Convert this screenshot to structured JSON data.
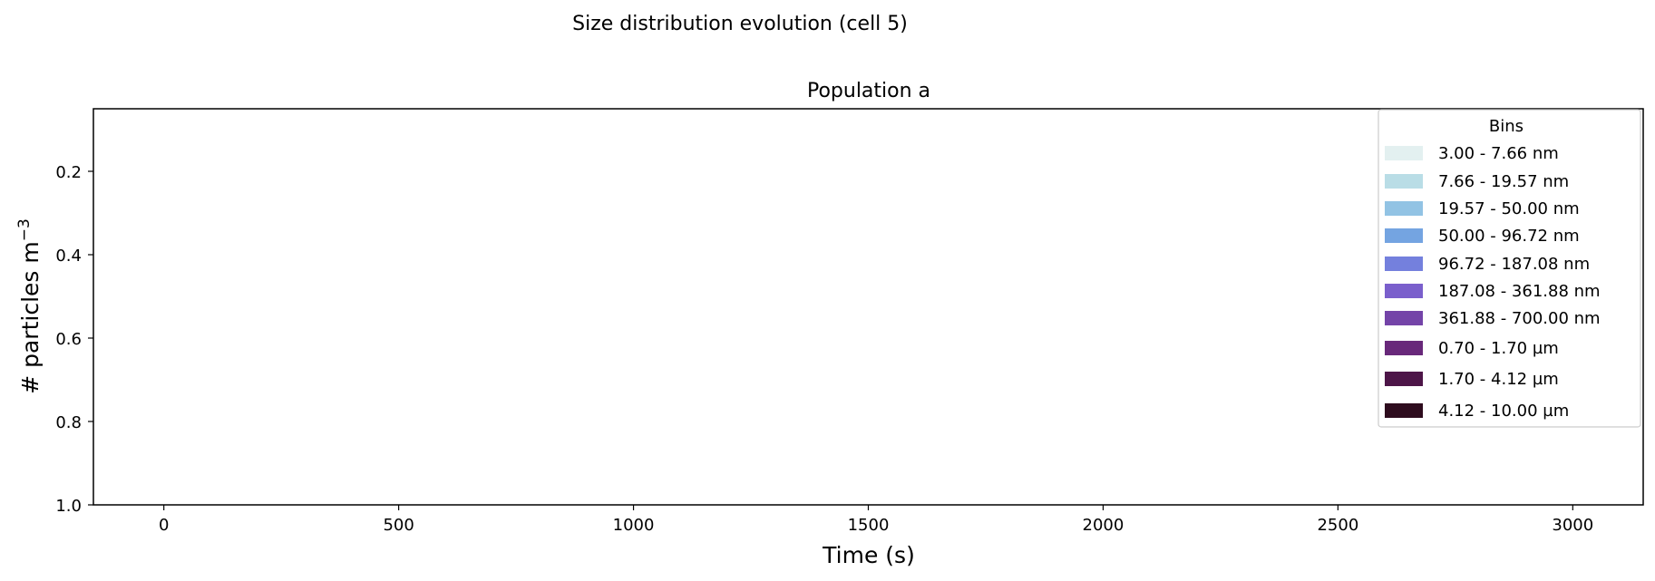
{
  "suptitle": "Size distribution evolution (cell 5)",
  "chart_data": {
    "type": "area",
    "title": "Population a",
    "xlabel": "Time (s)",
    "ylabel_main": "# particles m",
    "ylabel_sup": "−3",
    "xlim": [
      -150,
      3150
    ],
    "ylim": [
      0.05,
      1.0
    ],
    "y_inverted": true,
    "xticks": [
      0,
      500,
      1000,
      1500,
      2000,
      2500,
      3000
    ],
    "xtick_labels": [
      "0",
      "500",
      "1000",
      "1500",
      "2000",
      "2500",
      "3000"
    ],
    "yticks": [
      0.2,
      0.4,
      0.6,
      0.8,
      1.0
    ],
    "ytick_labels": [
      "0.2",
      "0.4",
      "0.6",
      "0.8",
      "1.0"
    ],
    "grid": false,
    "legend": {
      "title": "Bins",
      "placement": "top-right",
      "entries": [
        {
          "label": "3.00 - 7.66 nm",
          "color": "#e3f0f0"
        },
        {
          "label": "7.66 - 19.57 nm",
          "color": "#b9dde6"
        },
        {
          "label": "19.57 - 50.00 nm",
          "color": "#92c3e4"
        },
        {
          "label": "50.00 - 96.72 nm",
          "color": "#74a4e1"
        },
        {
          "label": "96.72 - 187.08 nm",
          "color": "#7480dd"
        },
        {
          "label": "187.08 - 361.88 nm",
          "color": "#7a5fcc"
        },
        {
          "label": "361.88 - 700.00 nm",
          "color": "#7444a8"
        },
        {
          "label": "0.70 - 1.70 µm",
          "color": "#68287a"
        },
        {
          "label": "1.70 - 4.12 µm",
          "color": "#4d1548"
        },
        {
          "label": "4.12 - 10.00 µm",
          "color": "#2e0c1e"
        }
      ]
    },
    "series": []
  }
}
